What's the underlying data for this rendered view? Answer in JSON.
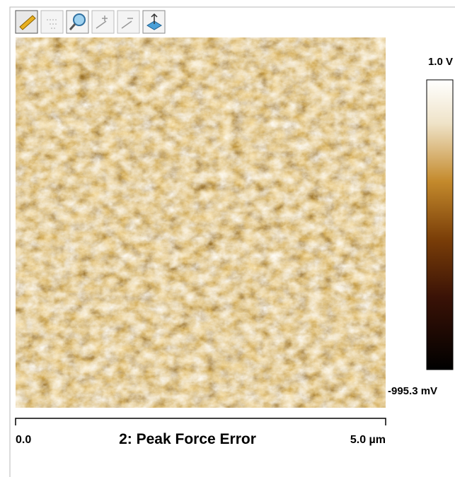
{
  "image": {
    "title": "2: Peak Force Error"
  },
  "colorbar": {
    "max_label": "1.0 V",
    "min_label": "-995.3 mV"
  },
  "scale_bar": {
    "start": "0.0",
    "end": "5.0 µm"
  }
}
